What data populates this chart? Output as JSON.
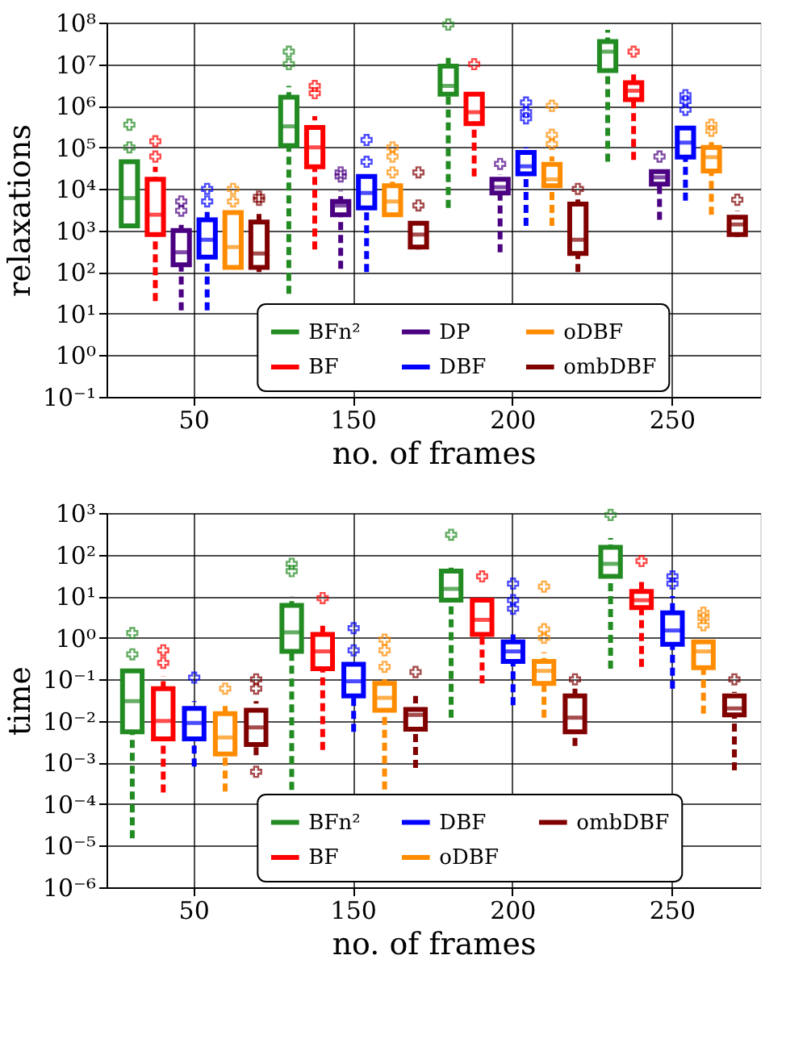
{
  "chart_data": [
    {
      "type": "box",
      "xlabel": "no. of frames",
      "ylabel": "relaxations",
      "categories": [
        "50",
        "150",
        "200",
        "250"
      ],
      "log": true,
      "grid": true,
      "legend": "bottom",
      "line_style": "dashed",
      "marker": "cross",
      "ylim": [
        0.1,
        100000000
      ],
      "yticks": [
        {
          "value": 0.1,
          "label": "10⁻¹"
        },
        {
          "value": 1,
          "label": "10⁰"
        },
        {
          "value": 10,
          "label": "10¹"
        },
        {
          "value": 100,
          "label": "10²"
        },
        {
          "value": 1000,
          "label": "10³"
        },
        {
          "value": 10000,
          "label": "10⁴"
        },
        {
          "value": 100000,
          "label": "10⁵"
        },
        {
          "value": 1000000,
          "label": "10⁶"
        },
        {
          "value": 10000000,
          "label": "10⁷"
        },
        {
          "value": 100000000,
          "label": "10⁸"
        }
      ],
      "series": [
        {
          "name": "BFn²",
          "color": "#228b22",
          "boxes": [
            {
              "low": 1200,
              "q1": 1300,
              "median": 6000,
              "q3": 45000,
              "high": 45000,
              "outliers": [
                100000,
                350000
              ]
            },
            {
              "low": 30,
              "q1": 110000,
              "median": 320000,
              "q3": 1600000,
              "high": 3000000,
              "outliers": [
                10000000,
                20000000
              ]
            },
            {
              "low": 3500,
              "q1": 1900000,
              "median": 3000000,
              "q3": 9000000,
              "high": 18000000,
              "outliers": [
                90000000
              ]
            },
            {
              "low": 45000,
              "q1": 7000000,
              "median": 20000000,
              "q3": 35000000,
              "high": 67000000
            }
          ]
        },
        {
          "name": "BF",
          "color": "#ff0000",
          "boxes": [
            {
              "low": 20,
              "q1": 800,
              "median": 2400,
              "q3": 17000,
              "high": 34000,
              "outliers": [
                60000,
                140000
              ]
            },
            {
              "low": 350,
              "q1": 34000,
              "median": 100000,
              "q3": 300000,
              "high": 560000,
              "outliers": [
                2000000,
                3000000
              ]
            },
            {
              "low": 20000,
              "q1": 370000,
              "median": 700000,
              "q3": 1900000,
              "high": 1900000,
              "outliers": [
                10000000
              ]
            },
            {
              "low": 50000,
              "q1": 1400000,
              "median": 2300000,
              "q3": 3600000,
              "high": 7000000,
              "outliers": [
                20000000
              ]
            }
          ]
        },
        {
          "name": "DP",
          "color": "#4b0082",
          "boxes": [
            {
              "low": 12,
              "q1": 150,
              "median": 300,
              "q3": 1000,
              "high": 1600,
              "outliers": [
                3000,
                5000
              ]
            },
            {
              "low": 120,
              "q1": 2400,
              "median": 4000,
              "q3": 5000,
              "high": 9000,
              "outliers": [
                20000,
                25000
              ]
            },
            {
              "low": 300,
              "q1": 8000,
              "median": 11000,
              "q3": 17000,
              "high": 22000,
              "outliers": [
                40000
              ]
            },
            {
              "low": 1800,
              "q1": 13000,
              "median": 19000,
              "q3": 26000,
              "high": 30000,
              "outliers": [
                60000
              ]
            }
          ]
        },
        {
          "name": "DBF",
          "color": "#0000ff",
          "boxes": [
            {
              "low": 12,
              "q1": 230,
              "median": 600,
              "q3": 1800,
              "high": 3000,
              "outliers": [
                5000,
                10000
              ]
            },
            {
              "low": 100,
              "q1": 3500,
              "median": 8000,
              "q3": 20000,
              "high": 20000,
              "outliers": [
                45000,
                150000
              ]
            },
            {
              "low": 1300,
              "q1": 23000,
              "median": 35000,
              "q3": 75000,
              "high": 100000,
              "outliers": [
                500000,
                700000,
                1200000
              ]
            },
            {
              "low": 5200,
              "q1": 58000,
              "median": 130000,
              "q3": 290000,
              "high": 300000,
              "outliers": [
                800000,
                1300000,
                1800000
              ]
            }
          ]
        },
        {
          "name": "oDBF",
          "color": "#ff8c00",
          "boxes": [
            {
              "low": 120,
              "q1": 130,
              "median": 400,
              "q3": 2700,
              "high": 3000,
              "outliers": [
                5000,
                10000
              ]
            },
            {
              "low": 2400,
              "q1": 2400,
              "median": 5000,
              "q3": 12000,
              "high": 15000,
              "outliers": [
                25000,
                60000,
                100000
              ]
            },
            {
              "low": 1300,
              "q1": 12000,
              "median": 17000,
              "q3": 39000,
              "high": 60000,
              "outliers": [
                120000,
                200000,
                1000000
              ]
            },
            {
              "low": 2400,
              "q1": 27000,
              "median": 58000,
              "q3": 100000,
              "high": 150000,
              "outliers": [
                250000,
                350000
              ]
            }
          ]
        },
        {
          "name": "ombDBF",
          "color": "#800000",
          "boxes": [
            {
              "low": 100,
              "q1": 130,
              "median": 280,
              "q3": 1600,
              "high": 2500,
              "outliers": [
                5500,
                6500
              ]
            },
            {
              "low": 350,
              "q1": 400,
              "median": 800,
              "q3": 1500,
              "high": 1600,
              "outliers": [
                4000,
                25000
              ]
            },
            {
              "low": 100,
              "q1": 280,
              "median": 600,
              "q3": 4300,
              "high": 6000,
              "outliers": [
                10000
              ]
            },
            {
              "low": 700,
              "q1": 800,
              "median": 1400,
              "q3": 2100,
              "high": 3000,
              "outliers": [
                5500
              ]
            }
          ]
        }
      ]
    },
    {
      "type": "box",
      "xlabel": "no. of frames",
      "ylabel": "time",
      "categories": [
        "50",
        "150",
        "200",
        "250"
      ],
      "log": true,
      "grid": true,
      "legend": "bottom",
      "line_style": "dashed",
      "marker": "cross",
      "ylim": [
        1e-06,
        1000
      ],
      "yticks": [
        {
          "value": 1e-06,
          "label": "10⁻⁶"
        },
        {
          "value": 1e-05,
          "label": "10⁻⁵"
        },
        {
          "value": 0.0001,
          "label": "10⁻⁴"
        },
        {
          "value": 0.001,
          "label": "10⁻³"
        },
        {
          "value": 0.01,
          "label": "10⁻²"
        },
        {
          "value": 0.1,
          "label": "10⁻¹"
        },
        {
          "value": 1,
          "label": "10⁰"
        },
        {
          "value": 10,
          "label": "10¹"
        },
        {
          "value": 100,
          "label": "10²"
        },
        {
          "value": 1000,
          "label": "10³"
        }
      ],
      "series": [
        {
          "name": "BFn²",
          "color": "#228b22",
          "boxes": [
            {
              "low": 1.5e-05,
              "q1": 0.0055,
              "median": 0.03,
              "q3": 0.16,
              "high": 0.16,
              "outliers": [
                0.4,
                1.3
              ]
            },
            {
              "low": 0.00022,
              "q1": 0.47,
              "median": 1.35,
              "q3": 6,
              "high": 10,
              "outliers": [
                40,
                60
              ]
            },
            {
              "low": 0.012,
              "q1": 8,
              "median": 15,
              "q3": 40,
              "high": 60,
              "outliers": [
                300
              ]
            },
            {
              "low": 0.18,
              "q1": 30,
              "median": 60,
              "q3": 150,
              "high": 250,
              "outliers": [
                900
              ]
            }
          ]
        },
        {
          "name": "BF",
          "color": "#ff0000",
          "boxes": [
            {
              "low": 0.00019,
              "q1": 0.0037,
              "median": 0.01,
              "q3": 0.06,
              "high": 0.12,
              "outliers": [
                0.25,
                0.5
              ]
            },
            {
              "low": 0.002,
              "q1": 0.18,
              "median": 0.47,
              "q3": 1.2,
              "high": 2,
              "outliers": [
                9
              ]
            },
            {
              "low": 0.08,
              "q1": 1.2,
              "median": 2.7,
              "q3": 8,
              "high": 8,
              "outliers": [
                30
              ]
            },
            {
              "low": 0.2,
              "q1": 5.3,
              "median": 8,
              "q3": 13,
              "high": 22,
              "outliers": [
                70
              ]
            }
          ]
        },
        {
          "name": "DBF",
          "color": "#0000ff",
          "boxes": [
            {
              "low": 0.0008,
              "q1": 0.0037,
              "median": 0.009,
              "q3": 0.02,
              "high": 0.03,
              "outliers": [
                0.11
              ]
            },
            {
              "low": 0.0055,
              "q1": 0.04,
              "median": 0.09,
              "q3": 0.23,
              "high": 0.25,
              "outliers": [
                0.5,
                1.7
              ]
            },
            {
              "low": 0.024,
              "q1": 0.27,
              "median": 0.47,
              "q3": 0.8,
              "high": 1.2,
              "outliers": [
                5,
                8,
                20
              ]
            },
            {
              "low": 0.06,
              "q1": 0.7,
              "median": 1.5,
              "q3": 4,
              "high": 10,
              "outliers": [
                20,
                30
              ]
            }
          ]
        },
        {
          "name": "oDBF",
          "color": "#ff8c00",
          "boxes": [
            {
              "low": 0.0002,
              "q1": 0.0016,
              "median": 0.004,
              "q3": 0.015,
              "high": 0.03,
              "outliers": [
                0.06
              ]
            },
            {
              "low": 0.00011,
              "q1": 0.018,
              "median": 0.036,
              "q3": 0.08,
              "high": 0.1,
              "outliers": [
                0.2,
                0.5,
                0.9
              ]
            },
            {
              "low": 0.012,
              "q1": 0.08,
              "median": 0.16,
              "q3": 0.27,
              "high": 0.45,
              "outliers": [
                1,
                1.6,
                17
              ]
            },
            {
              "low": 0.015,
              "q1": 0.19,
              "median": 0.47,
              "q3": 0.8,
              "high": 1,
              "outliers": [
                2,
                3,
                4
              ]
            }
          ]
        },
        {
          "name": "ombDBF",
          "color": "#800000",
          "boxes": [
            {
              "low": 0.0015,
              "q1": 0.0027,
              "median": 0.007,
              "q3": 0.018,
              "high": 0.03,
              "outliers": [
                0.0006,
                0.06,
                0.1
              ]
            },
            {
              "low": 0.00074,
              "q1": 0.0063,
              "median": 0.014,
              "q3": 0.019,
              "high": 0.04,
              "outliers": [
                0.15
              ]
            },
            {
              "low": 0.0025,
              "q1": 0.0055,
              "median": 0.012,
              "q3": 0.04,
              "high": 0.06,
              "outliers": [
                0.1
              ]
            },
            {
              "low": 0.00065,
              "q1": 0.014,
              "median": 0.02,
              "q3": 0.04,
              "high": 0.05,
              "outliers": [
                0.1
              ]
            }
          ]
        }
      ]
    }
  ]
}
